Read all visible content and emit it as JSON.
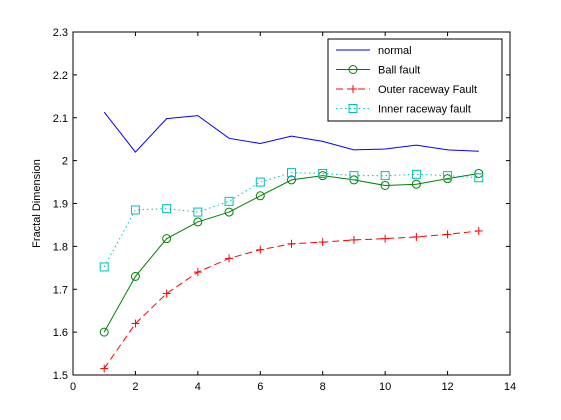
{
  "chart_data": {
    "type": "line",
    "title": "",
    "xlabel": "",
    "ylabel": "Fractal Dimension",
    "xlim": [
      0,
      14
    ],
    "ylim": [
      1.5,
      2.3
    ],
    "xticks": [
      0,
      2,
      4,
      6,
      8,
      10,
      12,
      14
    ],
    "yticks": [
      1.5,
      1.6,
      1.7,
      1.8,
      1.9,
      2,
      2.1,
      2.2,
      2.3
    ],
    "grid": false,
    "legend_position": "top-right",
    "x": [
      1,
      2,
      3,
      4,
      5,
      6,
      7,
      8,
      9,
      10,
      11,
      12,
      13
    ],
    "series": [
      {
        "name": "normal",
        "color": "#0000ff",
        "line_style": "solid",
        "marker": "none",
        "values": [
          2.113,
          2.02,
          2.098,
          2.105,
          2.052,
          2.04,
          2.057,
          2.045,
          2.025,
          2.027,
          2.036,
          2.025,
          2.022
        ]
      },
      {
        "name": "Ball fault",
        "color": "#008000",
        "line_style": "solid",
        "marker": "circle",
        "values": [
          1.6,
          1.73,
          1.818,
          1.857,
          1.88,
          1.918,
          1.955,
          1.965,
          1.955,
          1.942,
          1.945,
          1.958,
          1.97
        ]
      },
      {
        "name": "Outer raceway Fault",
        "color": "#ff0000",
        "line_style": "dashed",
        "marker": "plus",
        "values": [
          1.515,
          1.62,
          1.69,
          1.74,
          1.772,
          1.792,
          1.806,
          1.81,
          1.815,
          1.818,
          1.822,
          1.828,
          1.836
        ]
      },
      {
        "name": "Inner raceway fault",
        "color": "#00bfbf",
        "line_style": "dotted",
        "marker": "square",
        "values": [
          1.752,
          1.885,
          1.888,
          1.88,
          1.905,
          1.95,
          1.972,
          1.97,
          1.965,
          1.965,
          1.968,
          1.965,
          1.96
        ]
      }
    ]
  }
}
